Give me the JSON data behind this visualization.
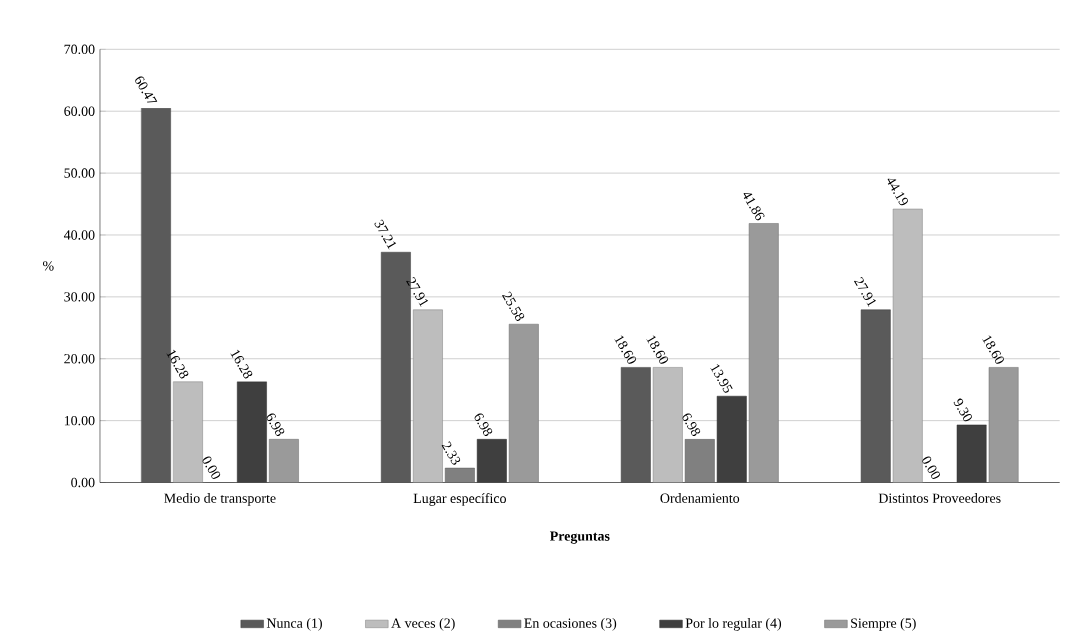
{
  "chart_data": {
    "type": "bar",
    "xlabel": "Preguntas",
    "ylabel": "%",
    "categories": [
      "Medio de transporte",
      "Lugar específico",
      "Ordenamiento",
      "Distintos Proveedores"
    ],
    "series": [
      {
        "name": "Nunca (1)",
        "color": "#5a5a5a",
        "values": [
          60.47,
          37.21,
          18.6,
          27.91
        ],
        "value_labels": [
          "60.47",
          "37.21",
          "18.60",
          "27.91"
        ]
      },
      {
        "name": "A veces (2)",
        "color": "#bdbdbd",
        "values": [
          16.28,
          27.91,
          18.6,
          44.19
        ],
        "value_labels": [
          "16.28",
          "27.91",
          "18.60",
          "44.19"
        ]
      },
      {
        "name": "En ocasiones (3)",
        "color": "#808080",
        "values": [
          0.0,
          2.33,
          6.98,
          0.0
        ],
        "value_labels": [
          "0.00",
          "2.33",
          "6.98",
          "0.00"
        ]
      },
      {
        "name": "Por lo regular (4)",
        "color": "#3f3f3f",
        "values": [
          16.28,
          6.98,
          13.95,
          9.3
        ],
        "value_labels": [
          "16.28",
          "6.98",
          "13.95",
          "9.30"
        ]
      },
      {
        "name": "Siempre (5)",
        "color": "#9a9a9a",
        "values": [
          6.98,
          25.58,
          41.86,
          18.6
        ],
        "value_labels": [
          "6.98",
          "25.58",
          "41.86",
          "18.60"
        ]
      }
    ],
    "ylim": [
      0,
      70
    ],
    "yticks": [
      {
        "value": 0,
        "label": "0.00"
      },
      {
        "value": 10,
        "label": "10.00"
      },
      {
        "value": 20,
        "label": "20.00"
      },
      {
        "value": 30,
        "label": "30.00"
      },
      {
        "value": 40,
        "label": "40.00"
      },
      {
        "value": 50,
        "label": "50.00"
      },
      {
        "value": 60,
        "label": "60.00"
      },
      {
        "value": 70,
        "label": "70.00"
      }
    ],
    "grid": "y",
    "legend": "bottom"
  }
}
